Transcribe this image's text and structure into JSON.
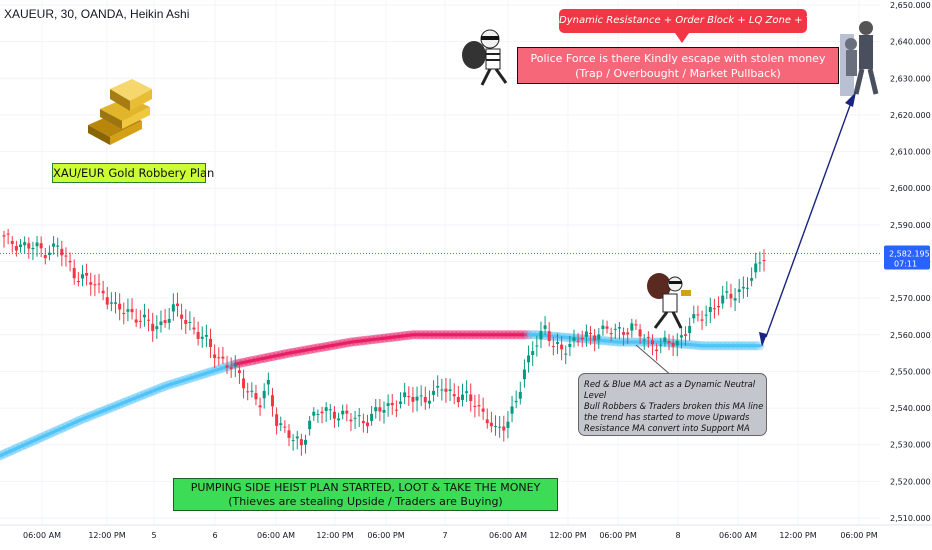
{
  "header": {
    "title": "XAUEUR, 30, OANDA, Heikin Ashi"
  },
  "annotations": {
    "robbery_plan": "XAU/EUR Gold Robbery Plan",
    "resistance": "Dynamic Resistance + Order Block + LQ Zone + Trap area",
    "police_line1": "Police Force is there Kindly escape with stolen money",
    "police_line2": "(Trap / Overbought / Market Pullback)",
    "pump_line1": "PUMPING SIDE HEIST PLAN STARTED, LOOT & TAKE THE MONEY",
    "pump_line2": "(Thieves are stealing Upside / Traders are Buying)",
    "ma_note_lines": [
      "Red & Blue MA act as a Dynamic Neutral Level",
      "Bull Robbers & Traders broken this MA line",
      "the trend has started to move Upwards",
      "Resistance MA convert into Support MA"
    ]
  },
  "price_badge": {
    "price": "2,582.195",
    "countdown": "07:11",
    "color": "#2962ff"
  },
  "colors": {
    "bull": "#089981",
    "bear": "#f23645",
    "ma_bull": "#4fc3f7",
    "ma_bear": "#e91e63",
    "gold": "#d4a017"
  },
  "chart_data": {
    "type": "candlestick",
    "symbol": "XAUEUR",
    "timeframe": "30",
    "source": "OANDA",
    "style": "Heikin Ashi",
    "ylim": [
      2508,
      2652
    ],
    "y_ticks": [
      "2,650.000",
      "2,640.000",
      "2,630.000",
      "2,620.000",
      "2,610.000",
      "2,600.000",
      "2,590.000",
      "2,580.000",
      "2,570.000",
      "2,560.000",
      "2,550.000",
      "2,540.000",
      "2,530.000",
      "2,520.000",
      "2,510.000"
    ],
    "x_ticks": [
      "06:00 AM",
      "12:00 PM",
      "5",
      "6",
      "06:00 AM",
      "12:00 PM",
      "06:00 PM",
      "7",
      "06:00 AM",
      "12:00 PM",
      "06:00 PM",
      "8",
      "06:00 AM",
      "12:00 PM",
      "06:00 PM"
    ],
    "last_price": 2582.195,
    "close_path": [
      [
        0,
        2586
      ],
      [
        6,
        2584
      ],
      [
        10,
        2583
      ],
      [
        13,
        2584
      ],
      [
        17,
        2577
      ],
      [
        24,
        2572
      ],
      [
        27,
        2567
      ],
      [
        31,
        2566
      ],
      [
        36,
        2562
      ],
      [
        38,
        2563
      ],
      [
        41,
        2567
      ],
      [
        45,
        2563
      ],
      [
        48,
        2559
      ],
      [
        52,
        2554
      ],
      [
        56,
        2550
      ],
      [
        60,
        2544
      ],
      [
        62,
        2541
      ],
      [
        64,
        2546
      ],
      [
        66,
        2537
      ],
      [
        70,
        2531
      ],
      [
        72,
        2530
      ],
      [
        74,
        2537
      ],
      [
        77,
        2539
      ],
      [
        80,
        2539
      ],
      [
        84,
        2537
      ],
      [
        88,
        2537
      ],
      [
        92,
        2540
      ],
      [
        96,
        2542
      ],
      [
        100,
        2543
      ],
      [
        104,
        2543
      ],
      [
        106,
        2546
      ],
      [
        110,
        2543
      ],
      [
        114,
        2542
      ],
      [
        117,
        2537
      ],
      [
        119,
        2533
      ],
      [
        122,
        2537
      ],
      [
        125,
        2545
      ],
      [
        128,
        2557
      ],
      [
        131,
        2562
      ],
      [
        133,
        2556
      ],
      [
        136,
        2557
      ],
      [
        140,
        2559
      ],
      [
        144,
        2561
      ],
      [
        148,
        2561
      ],
      [
        152,
        2562
      ],
      [
        155,
        2559
      ],
      [
        159,
        2557
      ],
      [
        163,
        2558
      ],
      [
        166,
        2563
      ],
      [
        169,
        2565
      ],
      [
        172,
        2568
      ],
      [
        175,
        2570
      ],
      [
        178,
        2572
      ],
      [
        181,
        2575
      ],
      [
        184,
        2582
      ]
    ],
    "moving_average": [
      [
        0,
        2527
      ],
      [
        20,
        2537
      ],
      [
        40,
        2546
      ],
      [
        57,
        2552
      ],
      [
        70,
        2555
      ],
      [
        85,
        2558
      ],
      [
        100,
        2560
      ],
      [
        115,
        2560
      ],
      [
        130,
        2560
      ],
      [
        140,
        2559
      ],
      [
        150,
        2558
      ],
      [
        160,
        2558
      ],
      [
        170,
        2557
      ],
      [
        184,
        2557
      ]
    ],
    "candle_count": 185
  }
}
